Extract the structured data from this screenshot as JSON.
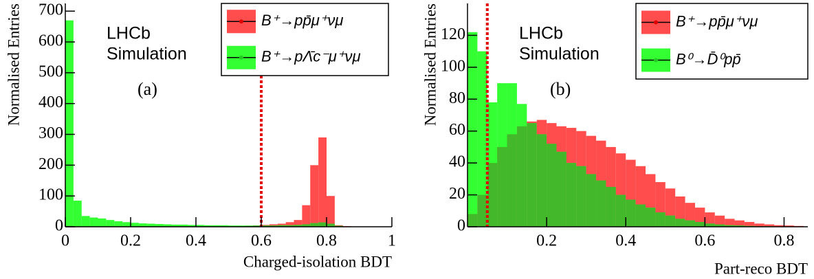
{
  "chart_data": [
    {
      "type": "histogram",
      "x_label": "Charged-isolation BDT",
      "y_label": "Normalised Entries",
      "annotations": [
        "LHCb",
        "Simulation",
        "(a)"
      ],
      "bins": [
        0,
        0.025,
        0.05,
        0.075,
        0.1,
        0.125,
        0.15,
        0.175,
        0.2,
        0.225,
        0.25,
        0.275,
        0.3,
        0.325,
        0.35,
        0.375,
        0.4,
        0.425,
        0.45,
        0.475,
        0.5,
        0.525,
        0.55,
        0.575,
        0.6,
        0.625,
        0.65,
        0.675,
        0.7,
        0.725,
        0.75,
        0.775,
        0.8,
        0.825,
        0.85,
        0.875,
        0.9,
        0.925,
        0.95,
        0.975,
        1
      ],
      "series": [
        {
          "name": "B⁺→pp̄μ⁺νμ",
          "color": "#ff4d4d",
          "values": [
            3,
            2,
            2,
            2,
            2,
            2,
            2,
            2,
            2,
            2,
            2,
            2,
            2,
            2,
            2,
            2,
            2,
            2,
            2,
            2,
            2,
            2,
            3,
            4,
            6,
            8,
            10,
            15,
            22,
            70,
            200,
            290,
            100,
            5,
            2,
            1,
            0,
            0,
            0,
            0
          ]
        },
        {
          "name": "B⁺→pΛ̄c⁻μ⁺νμ",
          "color": "#33ff33",
          "values": [
            670,
            85,
            35,
            30,
            27,
            22,
            18,
            15,
            13,
            11,
            10,
            9,
            8,
            7,
            7,
            6,
            6,
            5,
            5,
            5,
            4,
            4,
            4,
            4,
            4,
            4,
            5,
            5,
            6,
            8,
            12,
            14,
            10,
            3,
            1,
            0.5,
            0,
            0,
            0,
            0
          ]
        }
      ],
      "overlap_color": "#44b82b",
      "cut": 0.6,
      "cut_color": "#e00000",
      "xlim": [
        0,
        1
      ],
      "xticks": [
        0,
        0.2,
        0.4,
        0.6,
        0.8,
        1
      ],
      "ylim": [
        0,
        725
      ],
      "yticks": [
        0,
        100,
        200,
        300,
        400,
        500,
        600,
        700
      ]
    },
    {
      "type": "histogram",
      "x_label": "Part-reco BDT",
      "y_label": "Normalised Entries",
      "annotations": [
        "LHCb",
        "Simulation",
        "(b)"
      ],
      "bins": [
        0,
        0.025,
        0.05,
        0.075,
        0.1,
        0.125,
        0.15,
        0.175,
        0.2,
        0.225,
        0.25,
        0.275,
        0.3,
        0.325,
        0.35,
        0.375,
        0.4,
        0.425,
        0.45,
        0.475,
        0.5,
        0.525,
        0.55,
        0.575,
        0.6,
        0.625,
        0.65,
        0.675,
        0.7,
        0.725,
        0.75,
        0.775,
        0.8,
        0.825,
        0.85
      ],
      "series": [
        {
          "name": "B⁺→pp̄μ⁺νμ",
          "color": "#ff4d4d",
          "values": [
            8,
            20,
            40,
            50,
            58,
            63,
            66,
            67,
            65,
            63,
            62,
            60,
            57,
            54,
            50,
            46,
            42,
            38,
            33,
            28,
            24,
            19,
            15,
            12,
            9,
            7,
            5,
            4,
            3,
            2,
            1.5,
            1,
            0.8,
            0.5
          ]
        },
        {
          "name": "B⁰→D̄⁰pp̄",
          "color": "#33ff33",
          "values": [
            122,
            110,
            78,
            90,
            90,
            77,
            65,
            58,
            52,
            47,
            40,
            38,
            33,
            29,
            25,
            20,
            17,
            14,
            12,
            9,
            7,
            5,
            4,
            3,
            2,
            1.5,
            1,
            0.8,
            0.5,
            0.3,
            0.3,
            0.2,
            0.2,
            0.1
          ]
        }
      ],
      "overlap_color": "#44b82b",
      "cut": 0.05,
      "cut_color": "#e00000",
      "xlim": [
        0,
        0.86
      ],
      "xticks": [
        0.2,
        0.4,
        0.6,
        0.8
      ],
      "ylim": [
        0,
        140
      ],
      "yticks": [
        0,
        20,
        40,
        60,
        80,
        100,
        120
      ]
    }
  ]
}
